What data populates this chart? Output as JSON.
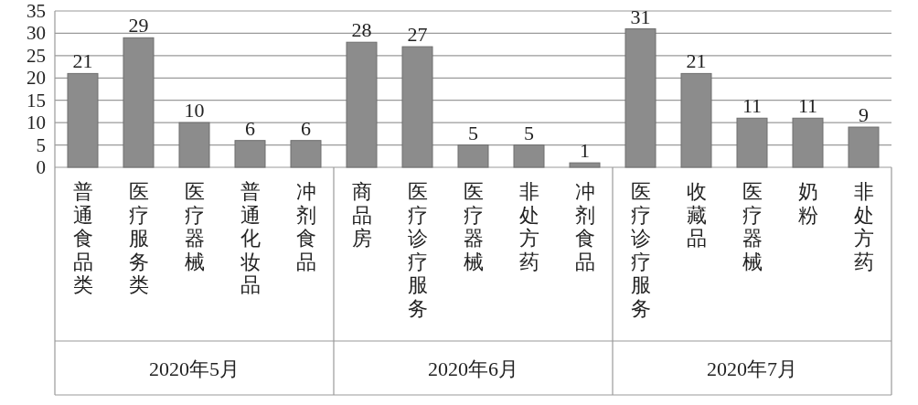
{
  "chart_data": {
    "type": "bar",
    "categories": [
      "普通食品类",
      "医疗服务类",
      "医疗器械",
      "普通化妆品",
      "冲剂食品",
      "商品房",
      "医疗诊疗服务",
      "医疗器械",
      "非处方药",
      "冲剂食品",
      "医疗诊疗服务",
      "收藏品",
      "医疗器械",
      "奶粉",
      "非处方药"
    ],
    "values": [
      21,
      29,
      10,
      6,
      6,
      28,
      27,
      5,
      5,
      1,
      31,
      21,
      11,
      11,
      9
    ],
    "color": "#8c8c8c",
    "ylim": [
      0,
      35
    ],
    "yticks": [
      0,
      5,
      10,
      15,
      20,
      25,
      30,
      35
    ],
    "grid": "y",
    "data_labels": true,
    "annotations": [
      "2020年5月",
      "2020年6月",
      "2020年7月"
    ]
  }
}
